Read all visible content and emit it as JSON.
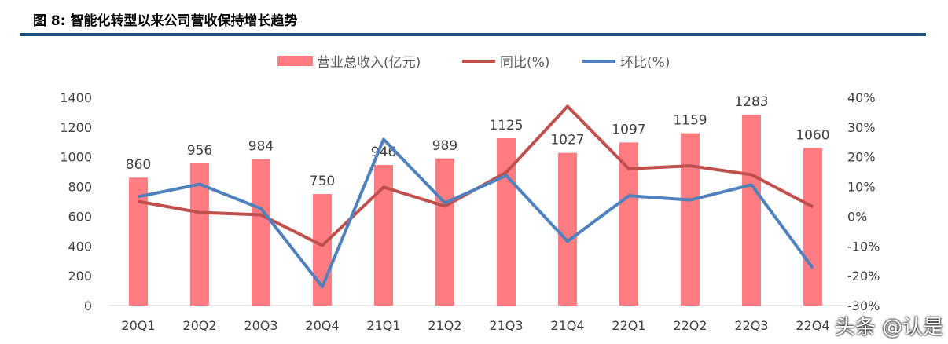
{
  "title": "图 8: 智能化转型以来公司营收保持增长趋势",
  "watermark": "头条 @认是",
  "chart_data": {
    "type": "bar+line",
    "categories": [
      "20Q1",
      "20Q2",
      "20Q3",
      "20Q4",
      "21Q1",
      "21Q2",
      "21Q3",
      "21Q4",
      "22Q1",
      "22Q2",
      "22Q3",
      "22Q4"
    ],
    "series": [
      {
        "name": "营业总收入(亿元)",
        "type": "bar",
        "axis": "left",
        "color": "#ff7c80",
        "values": [
          860,
          956,
          984,
          750,
          946,
          989,
          1125,
          1027,
          1097,
          1159,
          1283,
          1060
        ]
      },
      {
        "name": "同比(%)",
        "type": "line",
        "axis": "right",
        "color": "#c0504d",
        "values": [
          5.0,
          1.3,
          0.5,
          -9.8,
          9.8,
          3.4,
          14.8,
          37.0,
          16.0,
          17.0,
          14.0,
          3.2
        ]
      },
      {
        "name": "环比(%)",
        "type": "line",
        "axis": "right",
        "color": "#4f81bd",
        "values": [
          6.6,
          10.8,
          2.6,
          -23.7,
          25.9,
          4.5,
          13.7,
          -8.4,
          6.9,
          5.5,
          10.6,
          -17.4
        ]
      }
    ],
    "left_ylim": [
      0,
      1400
    ],
    "left_ticks": [
      "0",
      "200",
      "400",
      "600",
      "800",
      "1000",
      "1200",
      "1400"
    ],
    "right_ylim": [
      -30,
      40
    ],
    "right_ticks": [
      "-30%",
      "-20%",
      "-10%",
      "0%",
      "10%",
      "20%",
      "30%",
      "40%"
    ],
    "legend": "top",
    "grid": false
  }
}
